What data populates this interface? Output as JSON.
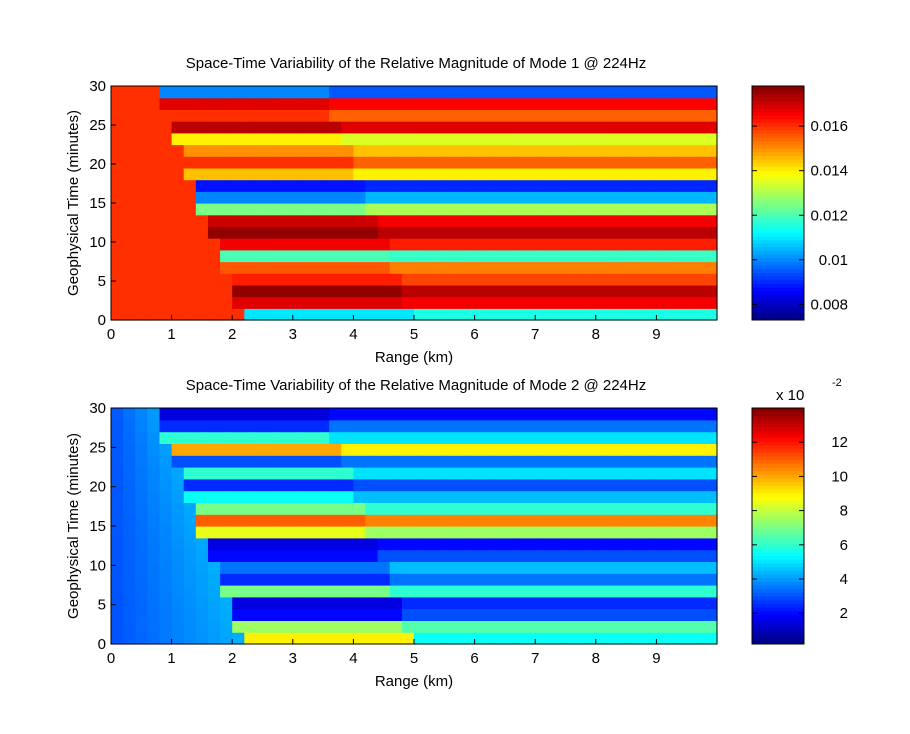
{
  "chart_data": [
    {
      "type": "heatmap",
      "title": "Space-Time Variability of the Relative Magnitude of Mode 1 @ 224Hz",
      "xlabel": "Range (km)",
      "ylabel": "Geophysical Time (minutes)",
      "xlim": [
        0,
        10
      ],
      "ylim": [
        0,
        30
      ],
      "xticks": [
        0,
        1,
        2,
        3,
        4,
        5,
        6,
        7,
        8,
        9
      ],
      "yticks": [
        0,
        5,
        10,
        15,
        20,
        25,
        30
      ],
      "colormap": "jet",
      "colorbar": {
        "clim": [
          0.0073,
          0.0178
        ],
        "ticks": [
          0.008,
          0.01,
          0.012,
          0.014,
          0.016
        ],
        "tick_labels": [
          "0.008",
          "0.01",
          "0.012",
          "0.014",
          "0.016"
        ],
        "exponent_label": ""
      },
      "wavefront": {
        "range_at_time_0_km": 2.5,
        "range_at_time_30_km": 1.0
      },
      "near_range_value": 0.016,
      "near_range_columns": [
        {
          "x": 0.0,
          "values": [
            0.016
          ]
        },
        {
          "x": 1.0,
          "values": [
            0.016
          ]
        }
      ],
      "time_bins_minutes": [
        0.75,
        2.25,
        3.75,
        5.25,
        6.75,
        8.25,
        9.75,
        11.25,
        12.75,
        14.25,
        15.75,
        17.25,
        18.75,
        20.25,
        21.75,
        23.25,
        24.75,
        26.25,
        27.75,
        29.25
      ],
      "band_values_far_range": [
        0.0115,
        0.0166,
        0.0172,
        0.0158,
        0.0152,
        0.0118,
        0.0162,
        0.0172,
        0.0166,
        0.013,
        0.0105,
        0.009,
        0.014,
        0.0155,
        0.0145,
        0.0135,
        0.0168,
        0.0155,
        0.0165,
        0.0095
      ],
      "band_values_near_front": [
        0.011,
        0.0168,
        0.0176,
        0.0162,
        0.0156,
        0.012,
        0.0166,
        0.0176,
        0.017,
        0.0125,
        0.01,
        0.0088,
        0.0145,
        0.016,
        0.015,
        0.014,
        0.0172,
        0.016,
        0.0168,
        0.01
      ]
    },
    {
      "type": "heatmap",
      "title": "Space-Time Variability of the Relative Magnitude of Mode 2 @ 224Hz",
      "xlabel": "Range (km)",
      "ylabel": "Geophysical Time (minutes)",
      "xlim": [
        0,
        10
      ],
      "ylim": [
        0,
        30
      ],
      "xticks": [
        0,
        1,
        2,
        3,
        4,
        5,
        6,
        7,
        8,
        9
      ],
      "yticks": [
        0,
        5,
        10,
        15,
        20,
        25,
        30
      ],
      "colormap": "jet",
      "colorbar": {
        "clim": [
          0.2,
          14.0
        ],
        "ticks": [
          2,
          4,
          6,
          8,
          10,
          12
        ],
        "tick_labels": [
          "2",
          "4",
          "6",
          "8",
          "10",
          "12"
        ],
        "exponent_label": "x 10",
        "exponent_power": "-2"
      },
      "wavefront": {
        "range_at_time_0_km": 2.5,
        "range_at_time_30_km": 1.0
      },
      "near_range_value": 3.0,
      "time_bins_minutes": [
        0.75,
        2.25,
        3.75,
        5.25,
        6.75,
        8.25,
        9.75,
        11.25,
        12.75,
        14.25,
        15.75,
        17.25,
        18.75,
        20.25,
        21.75,
        23.25,
        24.75,
        26.25,
        27.75,
        29.25
      ],
      "band_values_far_range": [
        5.5,
        6.5,
        3.0,
        2.5,
        6.0,
        3.5,
        4.5,
        3.0,
        2.0,
        7.5,
        10.5,
        6.0,
        4.5,
        3.0,
        5.0,
        3.5,
        9.0,
        5.0,
        3.5,
        2.0
      ],
      "band_values_near_front": [
        9.0,
        7.5,
        2.0,
        1.5,
        7.0,
        2.5,
        3.5,
        2.0,
        1.5,
        8.5,
        11.0,
        7.0,
        5.5,
        2.5,
        6.0,
        3.0,
        10.0,
        6.0,
        2.5,
        1.5
      ]
    }
  ]
}
